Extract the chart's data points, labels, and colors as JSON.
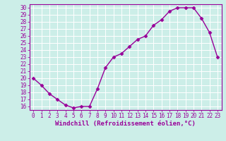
{
  "hours": [
    0,
    1,
    2,
    3,
    4,
    5,
    6,
    7,
    8,
    9,
    10,
    11,
    12,
    13,
    14,
    15,
    16,
    17,
    18,
    19,
    20,
    21,
    22,
    23
  ],
  "windchill": [
    20,
    19,
    17.8,
    17,
    16.2,
    15.8,
    16,
    16,
    18.5,
    21.5,
    23,
    23.5,
    24.5,
    25.5,
    26,
    27.5,
    28.3,
    29.5,
    30,
    30,
    30,
    28.5,
    26.5,
    23
  ],
  "line_color": "#990099",
  "bg_color": "#cceee8",
  "grid_color": "#ffffff",
  "xlabel": "Windchill (Refroidissement éolien,°C)",
  "ylim_min": 15.5,
  "ylim_max": 30.5,
  "yticks": [
    16,
    17,
    18,
    19,
    20,
    21,
    22,
    23,
    24,
    25,
    26,
    27,
    28,
    29,
    30
  ],
  "xticks": [
    0,
    1,
    2,
    3,
    4,
    5,
    6,
    7,
    8,
    9,
    10,
    11,
    12,
    13,
    14,
    15,
    16,
    17,
    18,
    19,
    20,
    21,
    22,
    23
  ],
  "marker": "D",
  "marker_size": 2.5,
  "line_width": 1.0,
  "tick_fontsize": 5.5,
  "xlabel_fontsize": 6.5
}
